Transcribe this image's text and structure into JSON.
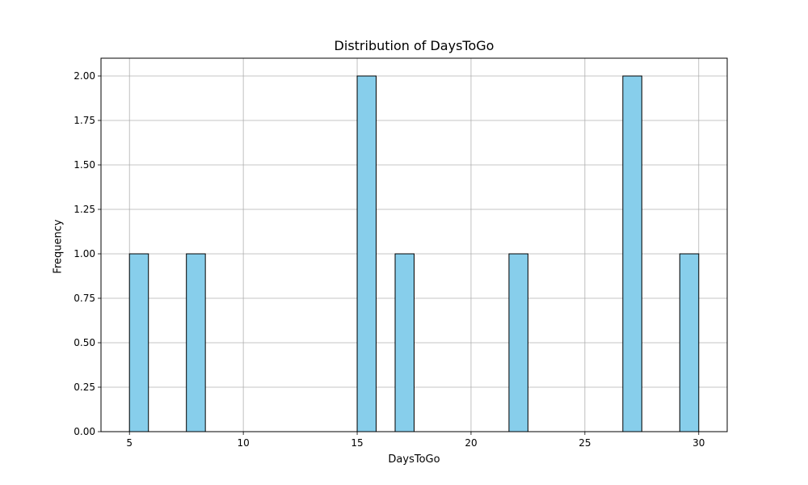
{
  "chart_data": {
    "type": "bar",
    "title": "Distribution of DaysToGo",
    "xlabel": "DaysToGo",
    "ylabel": "Frequency",
    "x_ticks": [
      5,
      10,
      15,
      20,
      25,
      30
    ],
    "y_ticks": [
      "0.00",
      "0.25",
      "0.50",
      "0.75",
      "1.00",
      "1.25",
      "1.50",
      "1.75",
      "2.00"
    ],
    "xlim": [
      3.75,
      31.25
    ],
    "ylim": [
      0,
      2.1
    ],
    "bins": [
      {
        "start": 5.0,
        "end": 5.8333,
        "count": 1
      },
      {
        "start": 7.5,
        "end": 8.3333,
        "count": 1
      },
      {
        "start": 15.0,
        "end": 15.8333,
        "count": 2
      },
      {
        "start": 16.6667,
        "end": 17.5,
        "count": 1
      },
      {
        "start": 21.6667,
        "end": 22.5,
        "count": 1
      },
      {
        "start": 26.6667,
        "end": 27.5,
        "count": 2
      },
      {
        "start": 29.1667,
        "end": 30.0,
        "count": 1
      }
    ],
    "bar_color": "#87CEEB",
    "edge_color": "#000000",
    "grid": true
  }
}
